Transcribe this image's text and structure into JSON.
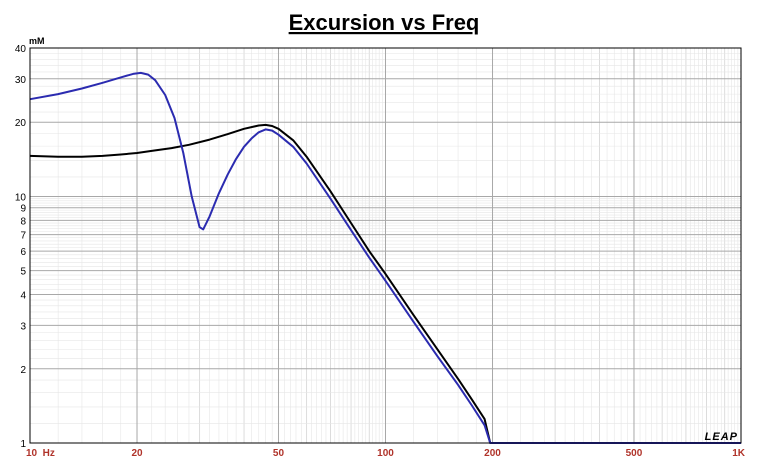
{
  "chart_data": {
    "type": "line",
    "title": "Excursion vs Freq",
    "y_unit": "mM",
    "x_scale": "log",
    "y_scale": "log",
    "xlim": [
      10,
      1000
    ],
    "ylim": [
      1,
      40
    ],
    "grid": true,
    "x_ticks": [
      {
        "value": 10,
        "label": "10  Hz"
      },
      {
        "value": 20,
        "label": "20"
      },
      {
        "value": 50,
        "label": "50"
      },
      {
        "value": 100,
        "label": "100"
      },
      {
        "value": 200,
        "label": "200"
      },
      {
        "value": 500,
        "label": "500"
      },
      {
        "value": 1000,
        "label": "1K"
      }
    ],
    "y_ticks": [
      {
        "value": 1,
        "label": "1"
      },
      {
        "value": 2,
        "label": "2"
      },
      {
        "value": 3,
        "label": "3"
      },
      {
        "value": 4,
        "label": "4"
      },
      {
        "value": 5,
        "label": "5"
      },
      {
        "value": 6,
        "label": "6"
      },
      {
        "value": 7,
        "label": "7"
      },
      {
        "value": 8,
        "label": "8"
      },
      {
        "value": 9,
        "label": "9"
      },
      {
        "value": 10,
        "label": "10"
      },
      {
        "value": 20,
        "label": "20"
      },
      {
        "value": 30,
        "label": "30"
      },
      {
        "value": 40,
        "label": "40"
      }
    ],
    "series": [
      {
        "color": "#000000",
        "points": [
          [
            10,
            14.6
          ],
          [
            12,
            14.5
          ],
          [
            14,
            14.5
          ],
          [
            16,
            14.6
          ],
          [
            18,
            14.8
          ],
          [
            20,
            15.0
          ],
          [
            22,
            15.3
          ],
          [
            25,
            15.7
          ],
          [
            28,
            16.2
          ],
          [
            32,
            17.0
          ],
          [
            36,
            17.9
          ],
          [
            40,
            18.8
          ],
          [
            44,
            19.4
          ],
          [
            46,
            19.5
          ],
          [
            48,
            19.3
          ],
          [
            50,
            18.8
          ],
          [
            55,
            16.9
          ],
          [
            60,
            14.5
          ],
          [
            70,
            10.5
          ],
          [
            80,
            7.8
          ],
          [
            90,
            6.0
          ],
          [
            100,
            4.85
          ],
          [
            120,
            3.3
          ],
          [
            140,
            2.4
          ],
          [
            160,
            1.82
          ],
          [
            175,
            1.5
          ],
          [
            190,
            1.25
          ],
          [
            197,
            1.0
          ],
          [
            1000,
            1.0
          ]
        ]
      },
      {
        "color": "#2b2bb0",
        "points": [
          [
            10,
            24.8
          ],
          [
            12,
            26.0
          ],
          [
            14,
            27.4
          ],
          [
            16,
            28.9
          ],
          [
            18,
            30.4
          ],
          [
            19.5,
            31.4
          ],
          [
            20.5,
            31.7
          ],
          [
            21.5,
            31.2
          ],
          [
            22.5,
            29.6
          ],
          [
            24,
            25.8
          ],
          [
            25.5,
            20.8
          ],
          [
            27,
            15.0
          ],
          [
            28.5,
            10.0
          ],
          [
            30,
            7.5
          ],
          [
            30.7,
            7.35
          ],
          [
            32,
            8.3
          ],
          [
            34,
            10.3
          ],
          [
            36,
            12.3
          ],
          [
            38,
            14.2
          ],
          [
            40,
            15.9
          ],
          [
            42,
            17.2
          ],
          [
            44,
            18.2
          ],
          [
            46,
            18.7
          ],
          [
            48,
            18.5
          ],
          [
            50,
            17.8
          ],
          [
            55,
            15.9
          ],
          [
            60,
            13.6
          ],
          [
            70,
            9.8
          ],
          [
            80,
            7.3
          ],
          [
            90,
            5.65
          ],
          [
            100,
            4.55
          ],
          [
            120,
            3.1
          ],
          [
            140,
            2.25
          ],
          [
            160,
            1.72
          ],
          [
            175,
            1.42
          ],
          [
            190,
            1.18
          ],
          [
            197,
            1.0
          ],
          [
            1000,
            1.0
          ]
        ]
      }
    ],
    "logo_text": "LEAP"
  }
}
